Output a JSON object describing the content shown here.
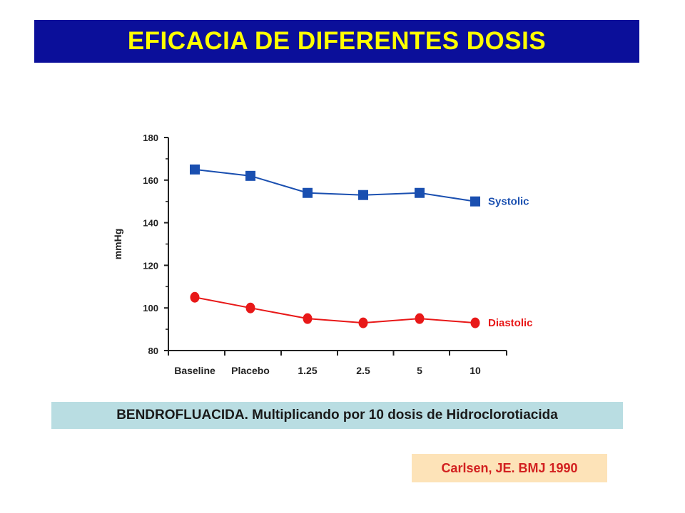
{
  "header": {
    "title": "EFICACIA DE DIFERENTES DOSIS"
  },
  "caption": "BENDROFLUACIDA. Multiplicando por 10 dosis de Hidroclorotiacida",
  "reference": "Carlsen, JE. BMJ 1990",
  "colors": {
    "title_bg": "#0b0f9a",
    "title_text": "#ffff00",
    "systolic": "#1a4fb0",
    "diastolic": "#e81818",
    "caption_bg": "#b9dde2",
    "reference_bg": "#fde3b8"
  },
  "chart_data": {
    "type": "line",
    "categories": [
      "Baseline",
      "Placebo",
      "1.25",
      "2.5",
      "5",
      "10"
    ],
    "ylabel": "mmHg",
    "xlabel": "",
    "ylim": [
      80,
      180
    ],
    "yticks": [
      80,
      100,
      120,
      140,
      160,
      180
    ],
    "grid": false,
    "legend": "inline-right",
    "series": [
      {
        "name": "Systolic",
        "values": [
          165,
          162,
          154,
          153,
          154,
          150
        ],
        "marker": "square"
      },
      {
        "name": "Diastolic",
        "values": [
          105,
          100,
          95,
          93,
          95,
          93
        ],
        "marker": "circle"
      }
    ]
  }
}
